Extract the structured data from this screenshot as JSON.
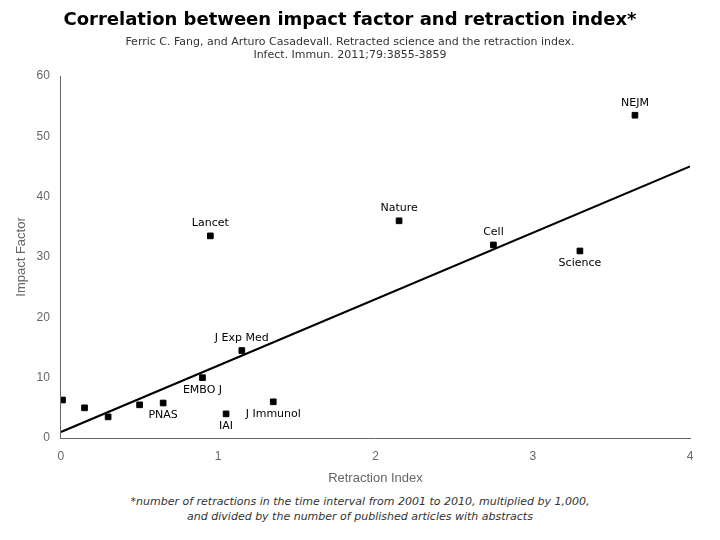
{
  "chart_data": {
    "type": "scatter",
    "title": "Correlation between impact factor and retraction index*",
    "subtitle": [
      "Ferric C. Fang, and Arturo Casadevall. Retracted science and the retraction index.",
      "Infect. Immun. 2011;79:3855-3859"
    ],
    "footnote": [
      "*number of retractions in the time interval from 2001 to 2010, multiplied by 1,000,",
      "and divided by the number of published articles with abstracts"
    ],
    "xlabel": "Retraction Index",
    "ylabel": "Impact Factor",
    "x": [
      0.01,
      0.15,
      0.3,
      0.5,
      0.65,
      0.9,
      0.95,
      1.05,
      1.15,
      1.35,
      2.15,
      2.75,
      3.3,
      3.65
    ],
    "values": [
      6.3,
      5.0,
      3.5,
      5.5,
      5.8,
      10.0,
      33.5,
      4.0,
      14.5,
      6.0,
      36.0,
      32.0,
      31.0,
      53.5
    ],
    "point_labels": [
      null,
      null,
      null,
      null,
      "PNAS",
      "EMBO J",
      "Lancet",
      "IAI",
      "J Exp Med",
      "J Immunol",
      "Nature",
      "Cell",
      "Science",
      "NEJM"
    ],
    "marker": "square",
    "color": "#000000",
    "regression": {
      "type": "line",
      "x": [
        0,
        4
      ],
      "values": [
        1.0,
        45.0
      ],
      "color": "#000000"
    },
    "xlim": [
      0,
      4
    ],
    "ylim": [
      0,
      60
    ],
    "xticks": [
      0,
      1,
      2,
      3,
      4
    ],
    "yticks": [
      0,
      10,
      20,
      30,
      40,
      50,
      60
    ],
    "grid": false
  }
}
